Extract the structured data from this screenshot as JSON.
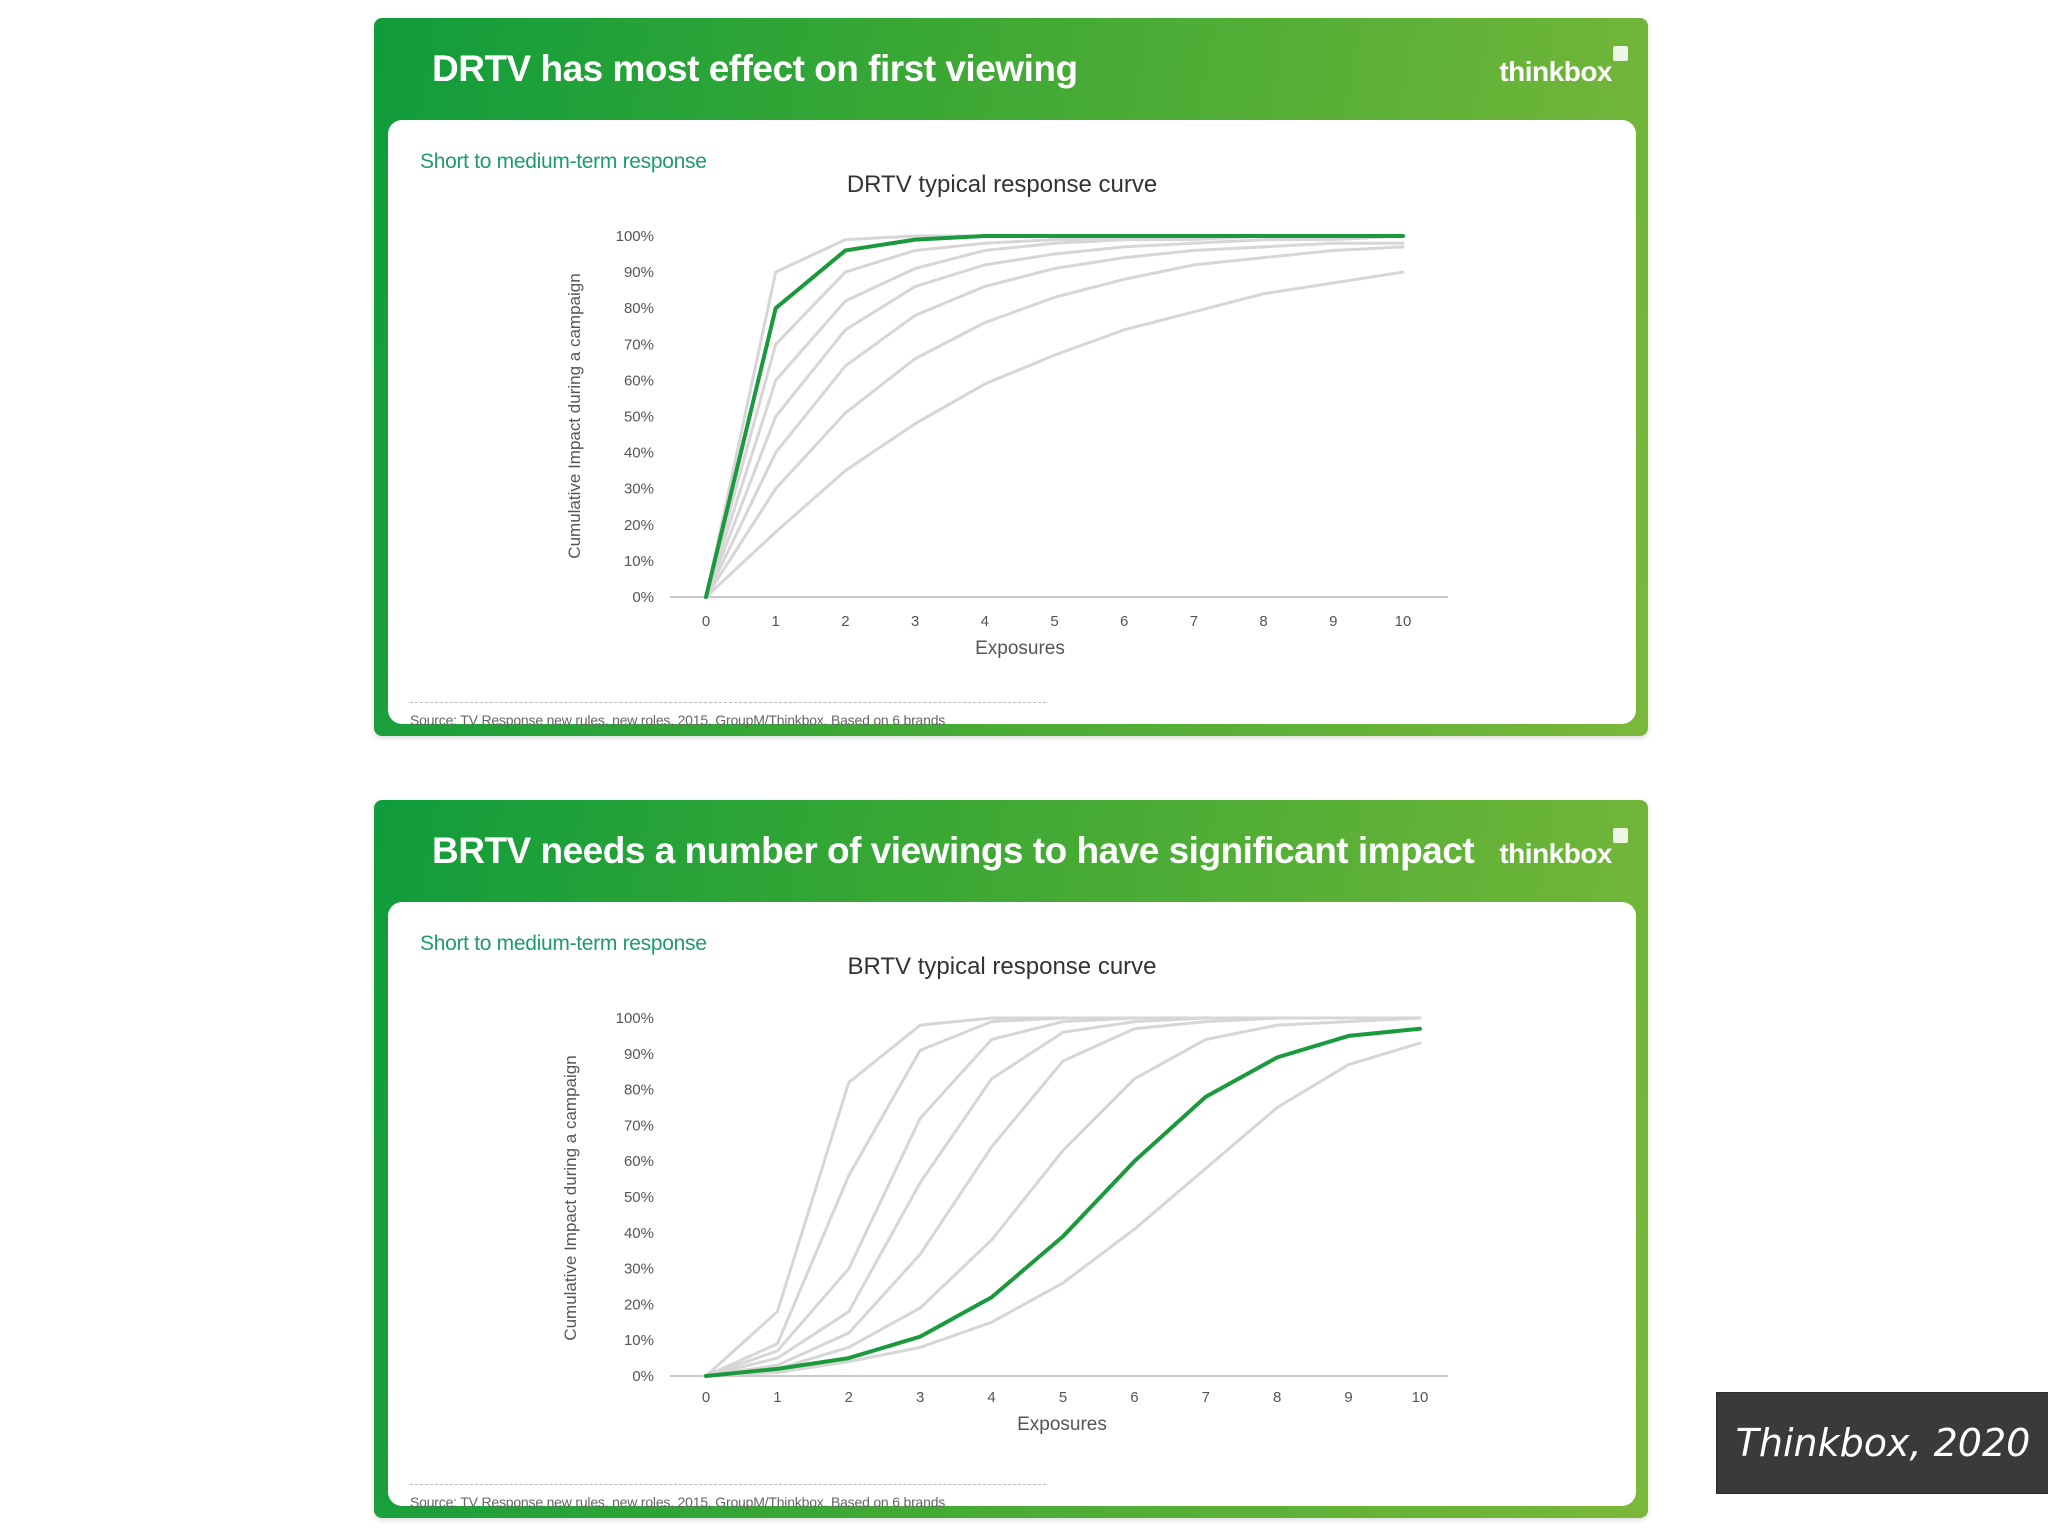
{
  "slides": [
    {
      "title": "DRTV has most effect on first viewing",
      "logo": "thinkbox",
      "subtitle": "Short to medium-term response",
      "source": "Source: TV Response new rules, new roles, 2015, GroupM/Thinkbox. Based on 6 brands"
    },
    {
      "title": "BRTV needs a number of viewings to have significant impact",
      "logo": "thinkbox",
      "subtitle": "Short to medium-term response",
      "source": "Source: TV Response new rules, new roles, 2015, GroupM/Thinkbox. Based on 6 brands"
    }
  ],
  "caption": "Thinkbox, 2020",
  "colors": {
    "highlight": "#1a9a3c",
    "grey_series": "#d6d6d6",
    "brand_green": "#2aa83a"
  },
  "chart_data": [
    {
      "type": "line",
      "title": "DRTV typical response curve",
      "xlabel": "Exposures",
      "ylabel": "Cumulative Impact during a campaign",
      "x": [
        0,
        1,
        2,
        3,
        4,
        5,
        6,
        7,
        8,
        9,
        10
      ],
      "y_ticks": [
        "0%",
        "10%",
        "20%",
        "30%",
        "40%",
        "50%",
        "60%",
        "70%",
        "80%",
        "90%",
        "100%"
      ],
      "ylim": [
        0,
        100
      ],
      "xlim": [
        0,
        10
      ],
      "grid": false,
      "series": [
        {
          "values": [
            0,
            90,
            99,
            100,
            100,
            100,
            100,
            100,
            100,
            100,
            100
          ],
          "highlight": false
        },
        {
          "values": [
            0,
            80,
            96,
            99,
            100,
            100,
            100,
            100,
            100,
            100,
            100
          ],
          "highlight": true
        },
        {
          "values": [
            0,
            70,
            90,
            96,
            98,
            99,
            99,
            100,
            100,
            100,
            100
          ],
          "highlight": false
        },
        {
          "values": [
            0,
            60,
            82,
            91,
            96,
            98,
            99,
            99,
            100,
            100,
            100
          ],
          "highlight": false
        },
        {
          "values": [
            0,
            50,
            74,
            86,
            92,
            95,
            97,
            98,
            99,
            99,
            100
          ],
          "highlight": false
        },
        {
          "values": [
            0,
            40,
            64,
            78,
            86,
            91,
            94,
            96,
            97,
            98,
            98
          ],
          "highlight": false
        },
        {
          "values": [
            0,
            30,
            51,
            66,
            76,
            83,
            88,
            92,
            94,
            96,
            97
          ],
          "highlight": false
        },
        {
          "values": [
            0,
            18,
            35,
            48,
            59,
            67,
            74,
            79,
            84,
            87,
            90
          ],
          "highlight": false
        }
      ]
    },
    {
      "type": "line",
      "title": "BRTV typical response curve",
      "xlabel": "Exposures",
      "ylabel": "Cumulative Impact during a campaign",
      "x": [
        0,
        1,
        2,
        3,
        4,
        5,
        6,
        7,
        8,
        9,
        10
      ],
      "y_ticks": [
        "0%",
        "10%",
        "20%",
        "30%",
        "40%",
        "50%",
        "60%",
        "70%",
        "80%",
        "90%",
        "100%"
      ],
      "ylim": [
        0,
        100
      ],
      "xlim": [
        0,
        10
      ],
      "grid": false,
      "series": [
        {
          "values": [
            0,
            18,
            82,
            98,
            100,
            100,
            100,
            100,
            100,
            100,
            100
          ],
          "highlight": false
        },
        {
          "values": [
            0,
            9,
            56,
            91,
            99,
            100,
            100,
            100,
            100,
            100,
            100
          ],
          "highlight": false
        },
        {
          "values": [
            0,
            7,
            30,
            72,
            94,
            99,
            100,
            100,
            100,
            100,
            100
          ],
          "highlight": false
        },
        {
          "values": [
            0,
            5,
            18,
            54,
            83,
            96,
            99,
            100,
            100,
            100,
            100
          ],
          "highlight": false
        },
        {
          "values": [
            0,
            3,
            12,
            34,
            64,
            88,
            97,
            99,
            100,
            100,
            100
          ],
          "highlight": false
        },
        {
          "values": [
            0,
            2,
            8,
            19,
            38,
            63,
            83,
            94,
            98,
            99,
            100
          ],
          "highlight": false
        },
        {
          "values": [
            0,
            2,
            5,
            11,
            22,
            39,
            60,
            78,
            89,
            95,
            97
          ],
          "highlight": true
        },
        {
          "values": [
            0,
            1,
            4,
            8,
            15,
            26,
            41,
            58,
            75,
            87,
            93
          ],
          "highlight": false
        }
      ]
    }
  ]
}
